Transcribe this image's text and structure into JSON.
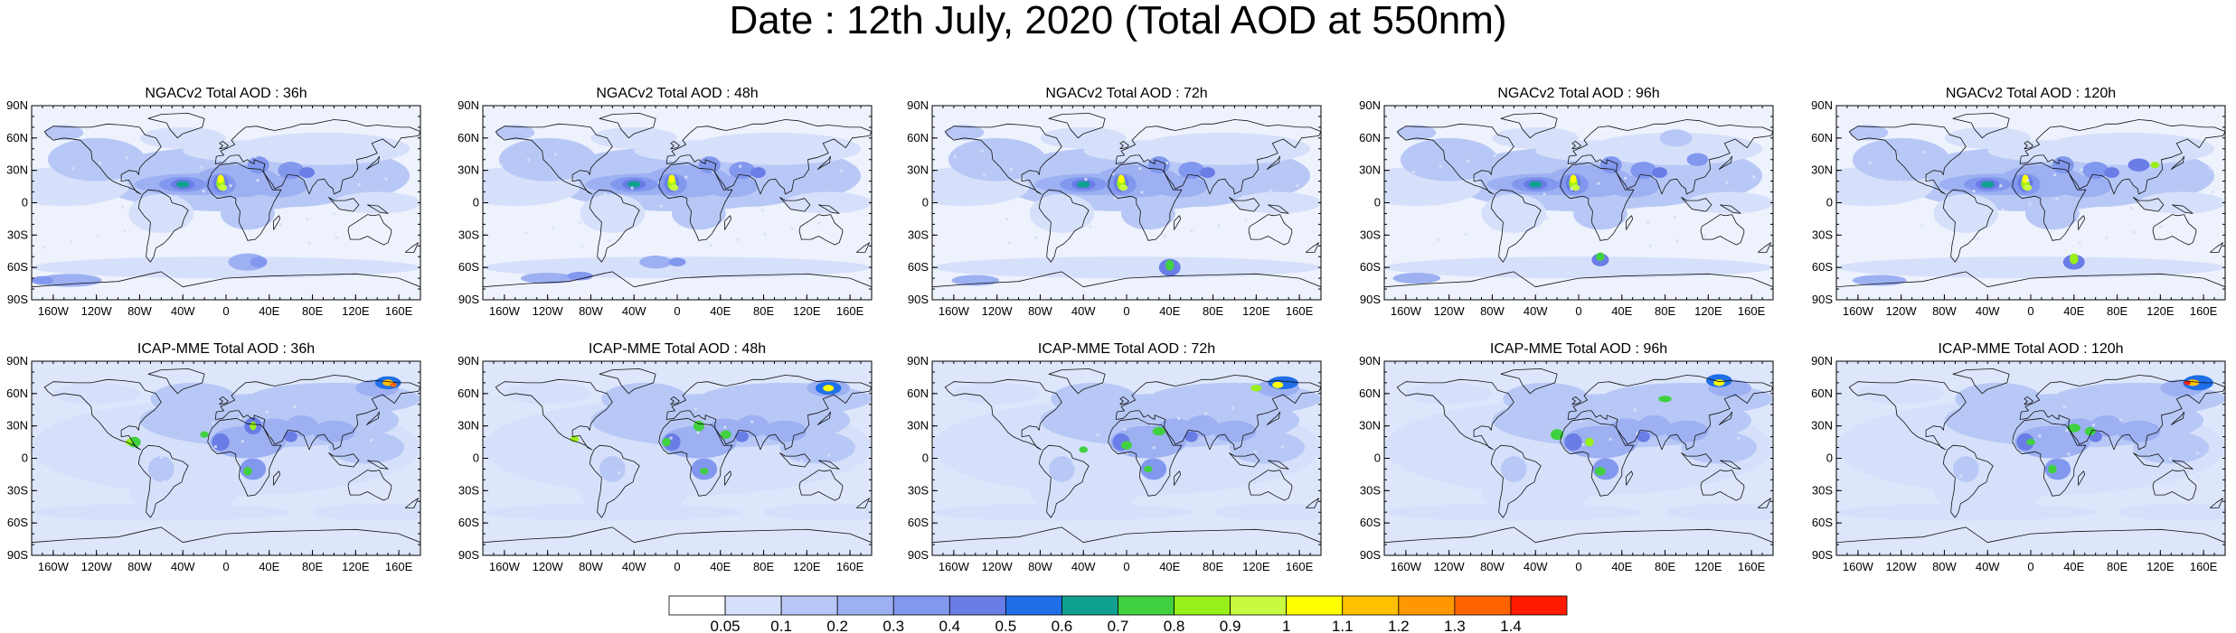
{
  "title": "Date : 12th July, 2020 (Total AOD at 550nm)",
  "rows": [
    {
      "model": "NGACv2",
      "panels": [
        {
          "label": "NGACv2 Total AOD : 36h"
        },
        {
          "label": "NGACv2 Total AOD : 48h"
        },
        {
          "label": "NGACv2 Total AOD : 72h"
        },
        {
          "label": "NGACv2 Total AOD : 96h"
        },
        {
          "label": "NGACv2 Total AOD : 120h"
        }
      ]
    },
    {
      "model": "ICAP-MME",
      "panels": [
        {
          "label": "ICAP-MME Total AOD : 36h"
        },
        {
          "label": "ICAP-MME Total AOD : 48h"
        },
        {
          "label": "ICAP-MME Total AOD : 72h"
        },
        {
          "label": "ICAP-MME Total AOD : 96h"
        },
        {
          "label": "ICAP-MME Total AOD : 120h"
        }
      ]
    }
  ],
  "lat_ticks": [
    "90N",
    "60N",
    "30N",
    "0",
    "30S",
    "60S",
    "90S"
  ],
  "lon_ticks": [
    "160W",
    "120W",
    "80W",
    "40W",
    "0",
    "40E",
    "80E",
    "120E",
    "160E"
  ],
  "colorbar": {
    "labels": [
      "0.05",
      "0.1",
      "0.2",
      "0.3",
      "0.4",
      "0.5",
      "0.6",
      "0.7",
      "0.8",
      "0.9",
      "1",
      "1.1",
      "1.2",
      "1.3",
      "1.4"
    ],
    "colors": [
      "#ffffff",
      "#d6e0fa",
      "#b8c8f6",
      "#9cb0f2",
      "#8298ee",
      "#6a7ce6",
      "#1f6fe8",
      "#10a090",
      "#40d040",
      "#98f018",
      "#c8fa40",
      "#ffff00",
      "#ffc000",
      "#ff9800",
      "#ff6400",
      "#ff1a00"
    ]
  }
}
